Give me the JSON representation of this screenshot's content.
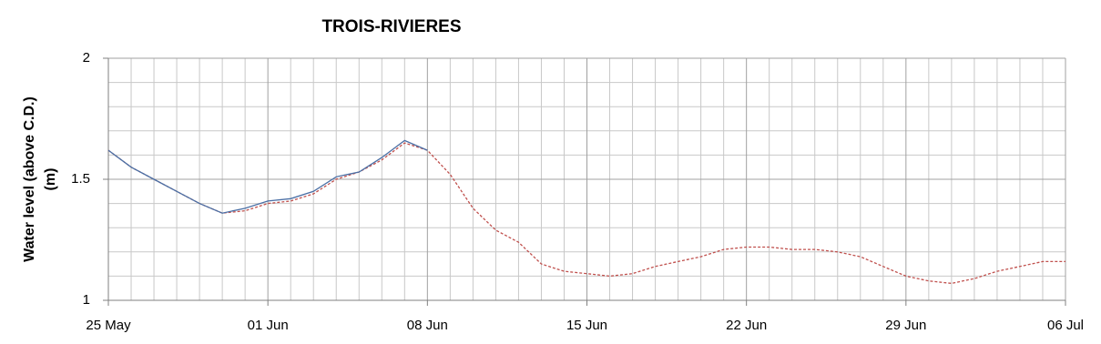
{
  "chart_data": {
    "type": "line",
    "title": "TROIS-RIVIERES",
    "ylabel": [
      "Water level (above C.D.)",
      "(m)"
    ],
    "categories": [
      "25 May",
      null,
      null,
      null,
      null,
      null,
      null,
      "01 Jun",
      null,
      null,
      null,
      null,
      null,
      null,
      "08 Jun",
      null,
      null,
      null,
      null,
      null,
      null,
      "15 Jun",
      null,
      null,
      null,
      null,
      null,
      null,
      "22 Jun",
      null,
      null,
      null,
      null,
      null,
      null,
      "29 Jun",
      null,
      null,
      null,
      null,
      null,
      null,
      "06 Jul"
    ],
    "series": [
      {
        "color": "#4a6fa5",
        "dashed": false,
        "values": [
          1.62,
          1.55,
          1.5,
          1.45,
          1.4,
          1.36,
          1.38,
          1.41,
          1.42,
          1.45,
          1.51,
          1.53,
          1.59,
          1.66,
          1.62,
          null,
          null,
          null,
          null,
          null,
          null,
          null,
          null,
          null,
          null,
          null,
          null,
          null,
          null,
          null,
          null,
          null,
          null,
          null,
          null,
          null,
          null,
          null,
          null,
          null,
          null,
          null,
          null
        ]
      },
      {
        "color": "#c0504d",
        "dashed": true,
        "values": [
          1.62,
          1.55,
          1.5,
          1.45,
          1.4,
          1.36,
          1.37,
          1.4,
          1.41,
          1.44,
          1.5,
          1.53,
          1.58,
          1.65,
          1.62,
          1.52,
          1.38,
          1.29,
          1.24,
          1.15,
          1.12,
          1.11,
          1.1,
          1.11,
          1.14,
          1.16,
          1.18,
          1.21,
          1.22,
          1.22,
          1.21,
          1.21,
          1.2,
          1.18,
          1.14,
          1.1,
          1.08,
          1.07,
          1.09,
          1.12,
          1.14,
          1.16,
          1.16
        ]
      }
    ],
    "ylim": [
      1,
      2
    ],
    "yticks": [
      1,
      1.5,
      2
    ],
    "y_minor_ticks": [
      1.1,
      1.2,
      1.3,
      1.4,
      1.6,
      1.7,
      1.8,
      1.9
    ],
    "grid": true
  }
}
